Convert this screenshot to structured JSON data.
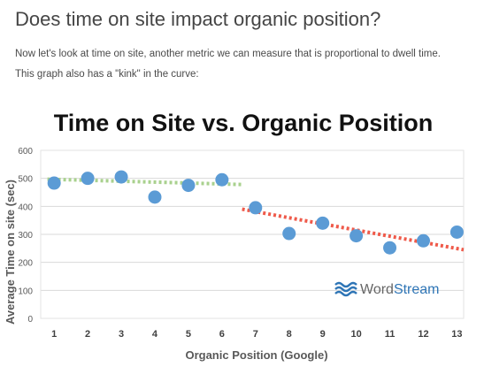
{
  "article": {
    "heading": "Does time on site impact organic position?",
    "paragraph_1": "Now let's look at time on site, another metric we can measure that is proportional to dwell time.",
    "paragraph_2": "This graph also has a \"kink\" in the curve:"
  },
  "chart_data": {
    "type": "scatter",
    "title": "Time on Site vs. Organic Position",
    "xlabel": "Organic Position (Google)",
    "ylabel": "Average Time on site (sec)",
    "xlim": [
      0.6,
      13.2
    ],
    "ylim": [
      0,
      600
    ],
    "x_ticks": [
      1,
      2,
      3,
      4,
      5,
      6,
      7,
      8,
      9,
      10,
      11,
      12,
      13
    ],
    "y_ticks": [
      0,
      100,
      200,
      300,
      400,
      500,
      600
    ],
    "grid": true,
    "points": [
      {
        "x": 1,
        "y": 483
      },
      {
        "x": 2,
        "y": 500
      },
      {
        "x": 3,
        "y": 505
      },
      {
        "x": 4,
        "y": 433
      },
      {
        "x": 5,
        "y": 475
      },
      {
        "x": 6,
        "y": 495
      },
      {
        "x": 7,
        "y": 395
      },
      {
        "x": 8,
        "y": 303
      },
      {
        "x": 9,
        "y": 340
      },
      {
        "x": 10,
        "y": 295
      },
      {
        "x": 11,
        "y": 252
      },
      {
        "x": 12,
        "y": 277
      },
      {
        "x": 13,
        "y": 308
      }
    ],
    "trendlines": [
      {
        "x": [
          0.8,
          6.6
        ],
        "y": [
          497,
          478
        ],
        "color": "#a9d18e"
      },
      {
        "x": [
          6.6,
          13.2
        ],
        "y": [
          390,
          245
        ],
        "color": "#ef5a4a"
      }
    ],
    "point_color": "#5b9bd5",
    "watermark": {
      "brand": "WordStream",
      "part_1": "Word",
      "part_2": "Stream",
      "color": "#2e75b6"
    }
  }
}
